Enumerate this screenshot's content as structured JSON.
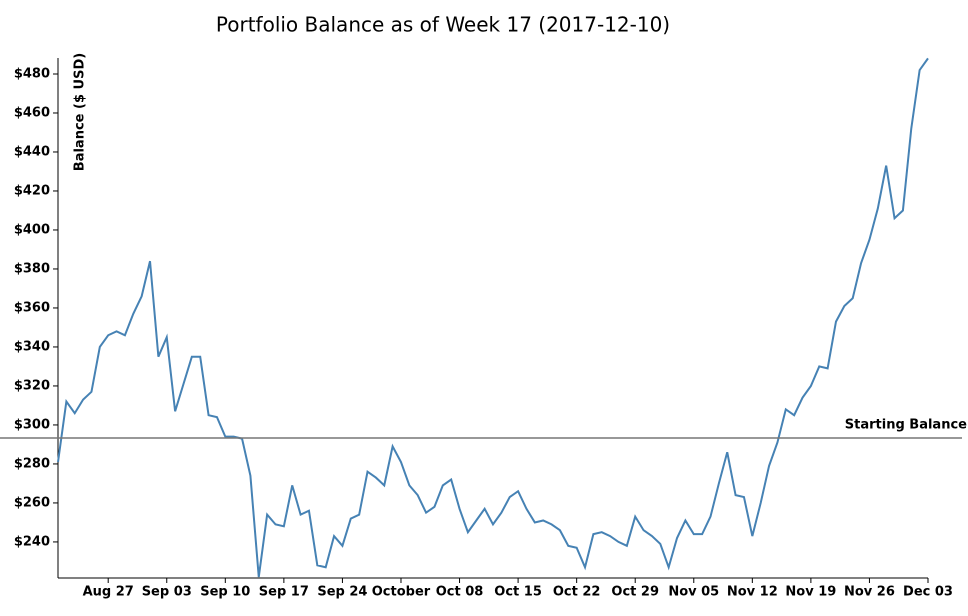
{
  "chart_data": {
    "type": "line",
    "title": "Portfolio Balance as of Week 17 (2017-12-10)",
    "y_label": "Balance ($ USD)",
    "categories": [
      null,
      null,
      null,
      null,
      null,
      null,
      "Aug 27",
      null,
      null,
      null,
      null,
      null,
      null,
      "Sep 03",
      null,
      null,
      null,
      null,
      null,
      null,
      "Sep 10",
      null,
      null,
      null,
      null,
      null,
      null,
      "Sep 17",
      null,
      null,
      null,
      null,
      null,
      null,
      "Sep 24",
      null,
      null,
      null,
      null,
      null,
      null,
      "October",
      null,
      null,
      null,
      null,
      null,
      null,
      "Oct 08",
      null,
      null,
      null,
      null,
      null,
      null,
      "Oct 15",
      null,
      null,
      null,
      null,
      null,
      null,
      "Oct 22",
      null,
      null,
      null,
      null,
      null,
      null,
      "Oct 29",
      null,
      null,
      null,
      null,
      null,
      null,
      "Nov 05",
      null,
      null,
      null,
      null,
      null,
      null,
      "Nov 12",
      null,
      null,
      null,
      null,
      null,
      null,
      "Nov 19",
      null,
      null,
      null,
      null,
      null,
      null,
      "Nov 26",
      null,
      null,
      null,
      null,
      null,
      null,
      "Dec 03"
    ],
    "values": [
      281,
      312,
      306,
      313,
      317,
      340,
      346,
      348,
      346,
      357,
      366,
      384,
      335,
      345,
      307,
      321,
      335,
      335,
      305,
      304,
      294,
      294,
      293,
      274,
      222,
      254,
      249,
      248,
      269,
      254,
      256,
      228,
      227,
      243,
      238,
      252,
      254,
      276,
      273,
      269,
      289,
      281,
      269,
      264,
      255,
      258,
      269,
      272,
      257,
      245,
      251,
      257,
      249,
      255,
      263,
      266,
      257,
      250,
      251,
      249,
      246,
      238,
      237,
      227,
      244,
      245,
      243,
      240,
      238,
      253,
      246,
      243,
      239,
      227,
      242,
      251,
      244,
      244,
      253,
      270,
      286,
      264,
      263,
      243,
      260,
      279,
      291,
      308,
      305,
      314,
      320,
      330,
      329,
      353,
      361,
      365,
      383,
      395,
      411,
      433,
      406,
      410,
      452,
      482,
      488
    ],
    "color": "#4682b4",
    "ylim": [
      221.5,
      488.2
    ],
    "yticks": [
      {
        "value": 240,
        "label": "$240"
      },
      {
        "value": 260,
        "label": "$260"
      },
      {
        "value": 280,
        "label": "$280"
      },
      {
        "value": 300,
        "label": "$300"
      },
      {
        "value": 320,
        "label": "$320"
      },
      {
        "value": 340,
        "label": "$340"
      },
      {
        "value": 360,
        "label": "$360"
      },
      {
        "value": 380,
        "label": "$380"
      },
      {
        "value": 400,
        "label": "$400"
      },
      {
        "value": 420,
        "label": "$420"
      },
      {
        "value": 440,
        "label": "$440"
      },
      {
        "value": 460,
        "label": "$460"
      },
      {
        "value": 480,
        "label": "$480"
      }
    ],
    "hline": {
      "value": 293.3,
      "label": "Starting Balance"
    }
  }
}
